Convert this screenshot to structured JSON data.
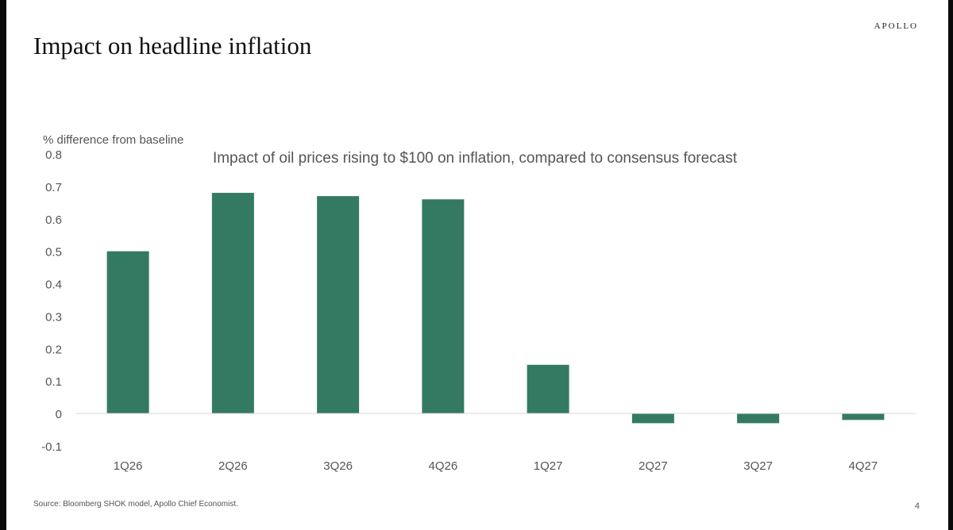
{
  "header": {
    "title": "Impact on headline inflation",
    "brand": "APOLLO"
  },
  "footer": {
    "source": "Source: Bloomberg SHOK model, Apollo Chief Economist.",
    "page_number": "4"
  },
  "chart_data": {
    "type": "bar",
    "title": "Impact of oil prices rising to $100 on inflation, compared to consensus forecast",
    "ylabel": "% difference from baseline",
    "xlabel": "",
    "categories": [
      "1Q26",
      "2Q26",
      "3Q26",
      "4Q26",
      "1Q27",
      "2Q27",
      "3Q27",
      "4Q27"
    ],
    "values": [
      0.5,
      0.68,
      0.67,
      0.66,
      0.15,
      -0.03,
      -0.03,
      -0.02
    ],
    "ylim": [
      -0.1,
      0.8
    ],
    "yticks": [
      "0.8",
      "0.7",
      "0.6",
      "0.5",
      "0.4",
      "0.3",
      "0.2",
      "0.1",
      "0",
      "-0.1"
    ],
    "ytick_values": [
      0.8,
      0.7,
      0.6,
      0.5,
      0.4,
      0.3,
      0.2,
      0.1,
      0,
      -0.1
    ],
    "grid": false,
    "legend": "none",
    "colors": {
      "bar": "#347a62",
      "zero_line": "#d9d9d9",
      "text": "#595959"
    }
  }
}
